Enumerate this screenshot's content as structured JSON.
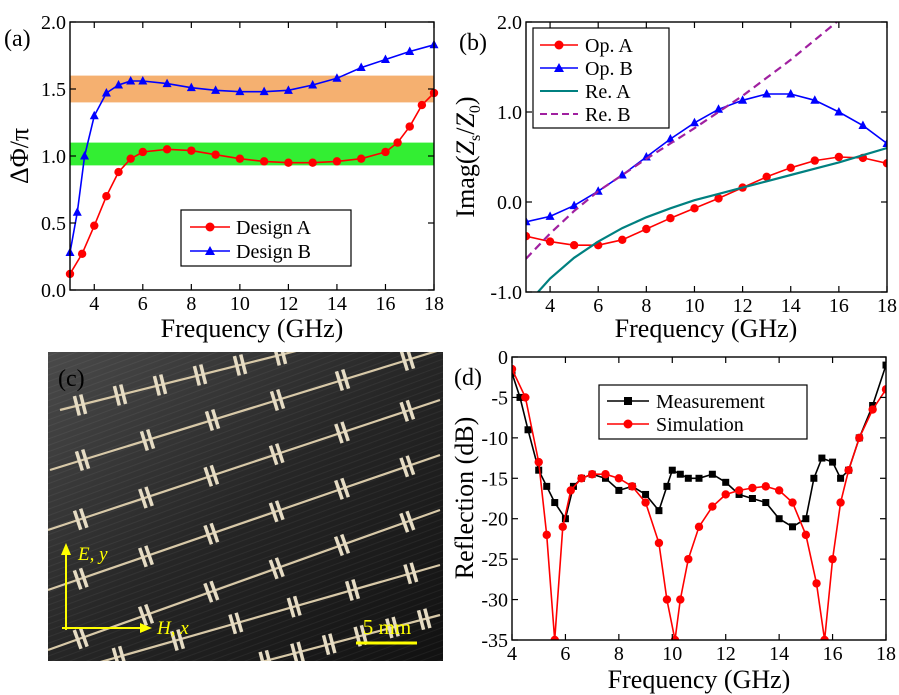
{
  "panels": {
    "a": {
      "label": "(a)"
    },
    "b": {
      "label": "(b)"
    },
    "c": {
      "label": "(c)",
      "annotations": {
        "axis_e": "E, y",
        "axis_h": "H, x",
        "scale_bar": "5 mm"
      }
    },
    "d": {
      "label": "(d)"
    }
  },
  "colors": {
    "red": "#ff0000",
    "blue": "#0000ff",
    "teal": "#008080",
    "purple": "#a020a0",
    "black": "#000000",
    "orange_band": "#f5b070",
    "green_band": "#33ee33",
    "annotation_yellow": "#ffff00"
  },
  "chart_data": [
    {
      "id": "a",
      "type": "line",
      "xlabel": "Frequency (GHz)",
      "ylabel": "ΔΦ/π",
      "xlim": [
        3,
        18
      ],
      "ylim": [
        0,
        2
      ],
      "xticks": [
        "4",
        "6",
        "8",
        "10",
        "12",
        "14",
        "16",
        "18"
      ],
      "yticks": [
        "0.0",
        "0.5",
        "1.0",
        "1.5",
        "2.0"
      ],
      "legend_position": "bottom-center",
      "bands": [
        {
          "y": [
            1.4,
            1.6
          ],
          "color": "#f5b070"
        },
        {
          "y": [
            0.93,
            1.1
          ],
          "color": "#33ee33"
        }
      ],
      "series": [
        {
          "name": "Design A",
          "color": "#ff0000",
          "marker": "circle",
          "x": [
            3,
            3.5,
            4,
            4.5,
            5,
            5.5,
            6,
            7,
            8,
            9,
            10,
            11,
            12,
            13,
            14,
            15,
            16,
            16.5,
            17,
            17.5,
            18
          ],
          "y": [
            0.12,
            0.27,
            0.48,
            0.7,
            0.88,
            0.98,
            1.03,
            1.05,
            1.04,
            1.01,
            0.98,
            0.96,
            0.95,
            0.95,
            0.96,
            0.98,
            1.03,
            1.1,
            1.22,
            1.38,
            1.47
          ]
        },
        {
          "name": "Design B",
          "color": "#0000ff",
          "marker": "triangle",
          "x": [
            3,
            3.3,
            3.6,
            4,
            4.5,
            5,
            5.5,
            6,
            7,
            8,
            9,
            10,
            11,
            12,
            13,
            14,
            15,
            16,
            17,
            18
          ],
          "y": [
            0.28,
            0.58,
            1.0,
            1.3,
            1.47,
            1.53,
            1.56,
            1.56,
            1.54,
            1.51,
            1.49,
            1.48,
            1.48,
            1.49,
            1.53,
            1.58,
            1.66,
            1.72,
            1.78,
            1.83
          ]
        }
      ]
    },
    {
      "id": "b",
      "type": "line",
      "xlabel": "Frequency (GHz)",
      "ylabel": "Imag(Zs/Z0)",
      "ylabel_parts": {
        "prefix": "Imag(",
        "z1": "Z",
        "s1": "s",
        "slash": "/",
        "z2": "Z",
        "s2": "0",
        "suffix": ")"
      },
      "xlim": [
        3,
        18
      ],
      "ylim": [
        -1,
        2
      ],
      "xticks": [
        "4",
        "6",
        "8",
        "10",
        "12",
        "14",
        "16",
        "18"
      ],
      "yticks": [
        "-1.0",
        "0.0",
        "1.0",
        "2.0"
      ],
      "legend_position": "top-left",
      "series": [
        {
          "name": "Op. A",
          "color": "#ff0000",
          "marker": "circle",
          "dash": false,
          "x": [
            3,
            4,
            5,
            6,
            7,
            8,
            9,
            10,
            11,
            12,
            13,
            14,
            15,
            16,
            17,
            18
          ],
          "y": [
            -0.38,
            -0.44,
            -0.48,
            -0.48,
            -0.42,
            -0.3,
            -0.18,
            -0.07,
            0.04,
            0.16,
            0.28,
            0.38,
            0.46,
            0.5,
            0.49,
            0.43
          ]
        },
        {
          "name": "Op. B",
          "color": "#0000ff",
          "marker": "triangle",
          "dash": false,
          "x": [
            3,
            4,
            5,
            6,
            7,
            8,
            9,
            10,
            11,
            12,
            13,
            14,
            15,
            16,
            17,
            18
          ],
          "y": [
            -0.22,
            -0.16,
            -0.04,
            0.12,
            0.3,
            0.5,
            0.7,
            0.88,
            1.03,
            1.13,
            1.2,
            1.2,
            1.13,
            1.0,
            0.85,
            0.65
          ]
        },
        {
          "name": "Re. A",
          "color": "#008080",
          "marker": "none",
          "dash": false,
          "x": [
            3.5,
            4,
            5,
            6,
            7,
            8,
            9,
            10,
            11,
            12,
            13,
            14,
            15,
            16,
            17,
            18
          ],
          "y": [
            -1.0,
            -0.85,
            -0.62,
            -0.44,
            -0.29,
            -0.17,
            -0.07,
            0.02,
            0.09,
            0.16,
            0.23,
            0.3,
            0.37,
            0.44,
            0.52,
            0.6
          ]
        },
        {
          "name": "Re. B",
          "color": "#a020a0",
          "marker": "none",
          "dash": true,
          "x": [
            3,
            4,
            5,
            6,
            7,
            8,
            9,
            10,
            11,
            12,
            13,
            14,
            15,
            16,
            17
          ],
          "y": [
            -0.63,
            -0.35,
            -0.1,
            0.12,
            0.3,
            0.48,
            0.65,
            0.82,
            1.0,
            1.18,
            1.38,
            1.58,
            1.8,
            2.02,
            2.25
          ]
        }
      ]
    },
    {
      "id": "d",
      "type": "line",
      "xlabel": "Frequency (GHz)",
      "ylabel": "Reflection (dB)",
      "xlim": [
        4,
        18
      ],
      "ylim": [
        -35,
        0
      ],
      "xticks": [
        "4",
        "6",
        "8",
        "10",
        "12",
        "14",
        "16",
        "18"
      ],
      "yticks": [
        "0",
        "-5",
        "-10",
        "-15",
        "-20",
        "-25",
        "-30",
        "-35"
      ],
      "legend_position": "top-center",
      "series": [
        {
          "name": "Measurement",
          "color": "#000000",
          "marker": "square",
          "x": [
            4,
            4.3,
            4.6,
            5,
            5.3,
            5.6,
            6,
            6.3,
            6.6,
            7,
            7.5,
            8,
            8.5,
            9,
            9.5,
            9.8,
            10,
            10.3,
            10.6,
            11,
            11.5,
            12,
            12.5,
            13,
            13.5,
            14,
            14.5,
            15,
            15.3,
            15.6,
            16,
            16.3,
            16.6,
            17,
            17.5,
            18
          ],
          "y": [
            -2,
            -5,
            -9,
            -14,
            -16,
            -18,
            -20,
            -16,
            -15,
            -14.5,
            -15,
            -16.5,
            -16,
            -17,
            -19,
            -16,
            -14,
            -14.5,
            -15,
            -15,
            -14.5,
            -15.5,
            -17,
            -17.5,
            -18,
            -20,
            -21,
            -20,
            -15,
            -12.5,
            -13,
            -15,
            -14,
            -10,
            -6,
            -1
          ]
        },
        {
          "name": "Simulation",
          "color": "#ff0000",
          "marker": "circle",
          "x": [
            4,
            4.5,
            5,
            5.3,
            5.6,
            5.9,
            6.2,
            6.6,
            7,
            7.5,
            8,
            8.5,
            9,
            9.5,
            9.8,
            10.1,
            10.3,
            10.6,
            11,
            11.5,
            12,
            12.5,
            13,
            13.5,
            14,
            14.5,
            15,
            15.4,
            15.7,
            16,
            16.3,
            16.6,
            17,
            17.5,
            18
          ],
          "y": [
            -1.5,
            -5,
            -13,
            -22,
            -35,
            -21,
            -16.5,
            -15,
            -14.5,
            -14.5,
            -15,
            -16,
            -18,
            -23,
            -30,
            -35,
            -30,
            -25,
            -21,
            -18.5,
            -17,
            -16.5,
            -16.2,
            -16,
            -16.5,
            -18,
            -22,
            -28,
            -35,
            -25,
            -18,
            -14,
            -10,
            -6.5,
            -4
          ]
        }
      ]
    }
  ]
}
